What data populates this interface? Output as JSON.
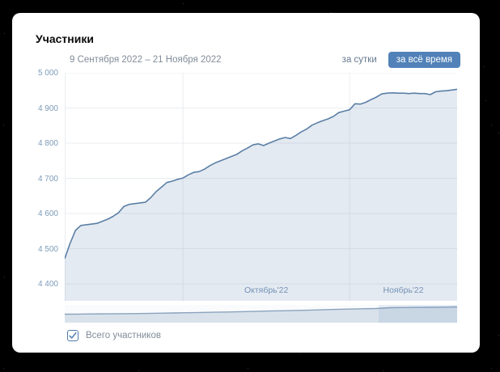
{
  "header": {
    "title": "Участники"
  },
  "toolbar": {
    "date_range": "9 Сентября 2022 – 21 Ноября 2022",
    "daily_label": "за сутки",
    "alltime_label": "за всё время"
  },
  "legend": {
    "label": "Всего участников",
    "checked": true
  },
  "colors": {
    "accent": "#5181b8",
    "line": "#5b7fa6",
    "area_fill": "rgba(133,160,190,0.22)",
    "grid": "#e9ecf0",
    "y_tick_text": "#7d9bb9",
    "x_tick_text": "#7492b8",
    "nav_line": "#8ba3bd",
    "nav_fill": "rgba(133,160,190,0.28)",
    "secondary_text": "#818c99"
  },
  "chart_data": {
    "type": "area",
    "title": "Участники",
    "series_name": "Всего участников",
    "x_start": "2022-09-09",
    "x_end": "2022-11-21",
    "ylim": [
      4400,
      5000
    ],
    "y_ticks": [
      5000,
      4900,
      4800,
      4700,
      4600,
      4500,
      4400
    ],
    "y_tick_labels": [
      "5 000",
      "4 900",
      "4 800",
      "4 700",
      "4 600",
      "4 500",
      "4 400"
    ],
    "grid": true,
    "month_boundaries": [
      22,
      53
    ],
    "x_tick_labels": [
      "Октябрь'22",
      "Ноябрь'22"
    ],
    "values": [
      4472,
      4515,
      4552,
      4566,
      4568,
      4570,
      4572,
      4578,
      4584,
      4592,
      4602,
      4620,
      4626,
      4628,
      4630,
      4632,
      4645,
      4662,
      4675,
      4688,
      4692,
      4697,
      4701,
      4710,
      4717,
      4719,
      4726,
      4736,
      4744,
      4750,
      4756,
      4762,
      4768,
      4778,
      4786,
      4795,
      4798,
      4793,
      4800,
      4806,
      4812,
      4816,
      4813,
      4822,
      4832,
      4840,
      4851,
      4858,
      4864,
      4869,
      4876,
      4887,
      4891,
      4895,
      4912,
      4911,
      4916,
      4924,
      4931,
      4940,
      4942,
      4943,
      4942,
      4942,
      4941,
      4942,
      4941,
      4941,
      4938,
      4946,
      4948,
      4949,
      4951,
      4953
    ],
    "navigator": {
      "values": [
        0.4,
        0.41,
        0.42,
        0.43,
        0.44,
        0.45,
        0.46,
        0.48,
        0.5,
        0.52,
        0.54,
        0.56,
        0.58,
        0.61,
        0.63,
        0.66,
        0.68,
        0.71,
        0.73,
        0.76,
        0.79,
        0.82,
        0.85,
        0.87,
        0.93,
        0.95,
        0.96,
        0.97,
        0.98,
        1.0
      ],
      "selection": [
        0.8,
        1.0
      ]
    }
  }
}
